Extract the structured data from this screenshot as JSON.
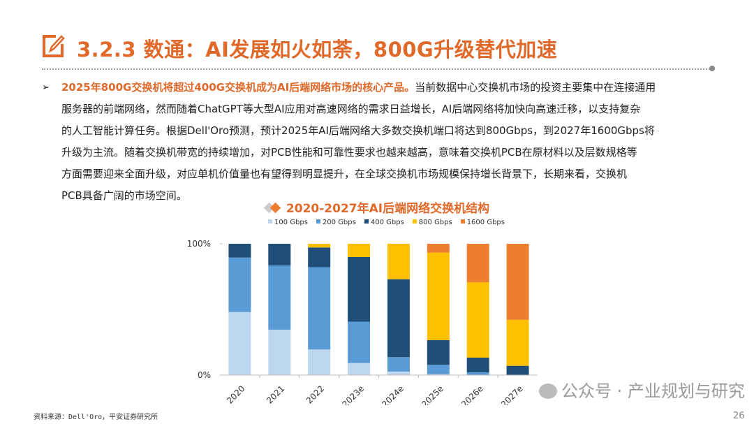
{
  "header": {
    "title": "3.2.3 数通：AI发展如火如荼，800G升级替代加速",
    "icon": "edit-pencil-icon",
    "accent_color": "#E0692A"
  },
  "body": {
    "bullet": "➢",
    "highlight": "2025年800G交换机将超过400G交换机成为AI后端网络市场的核心产品。",
    "lines": [
      "当前数据中心交换机市场的投资主要集中在连接通用",
      "服务器的前端网络，然而随着ChatGPT等大型AI应用对高速网络的需求日益增长，AI后端网络将加快向高速迁移，以支持复杂",
      "的人工智能计算任务。根据Dell'Oro预测，预计2025年AI后端网络大多数交换机端口将达到800Gbps，到2027年1600Gbps将",
      "升级为主流。随着交换机带宽的持续增加，对PCB性能和可靠性要求也越来越高，意味着交换机PCB在原材料以及层数规格等",
      "方面需要迎来全面升级，对应单机价值量也有望得到明显提升，在全球交换机市场规模保持增长背景下，长期来看，交换机",
      "PCB具备广阔的市场空间。"
    ]
  },
  "chart_data": {
    "type": "bar",
    "stacked": true,
    "title": "2020-2027年AI后端网络交换机结构",
    "categories": [
      "2020",
      "2021",
      "2022",
      "2023e",
      "2024e",
      "2025e",
      "2026e",
      "2027e"
    ],
    "series": [
      {
        "name": "100 Gbps",
        "color": "#BDD7EE",
        "values": [
          48,
          34.6,
          19.5,
          9.2,
          2.7,
          0.7,
          0,
          0
        ]
      },
      {
        "name": "200 Gbps",
        "color": "#5B9BD5",
        "values": [
          41.5,
          48.9,
          62.7,
          31.5,
          11,
          7.1,
          2.1,
          0
        ]
      },
      {
        "name": "400 Gbps",
        "color": "#1F4E79",
        "values": [
          10.5,
          16.5,
          15,
          49.2,
          59.3,
          18.8,
          11.2,
          7.1
        ]
      },
      {
        "name": "800 Gbps",
        "color": "#FFC000",
        "values": [
          0,
          0,
          2.8,
          10.1,
          27,
          66.7,
          57.4,
          35
        ]
      },
      {
        "name": "1600 Gbps",
        "color": "#ED7D31",
        "values": [
          0,
          0,
          0,
          0,
          0,
          6.7,
          29.3,
          57.9
        ]
      }
    ],
    "ylim": [
      0,
      100
    ],
    "yticks": [
      "0%",
      "100%"
    ],
    "legend": "top",
    "grid": false
  },
  "footer": {
    "source": "资料来源：Dell'Oro，平安证券研究所",
    "page_number": "26",
    "watermark": "公众号 · 产业规划与研究"
  }
}
